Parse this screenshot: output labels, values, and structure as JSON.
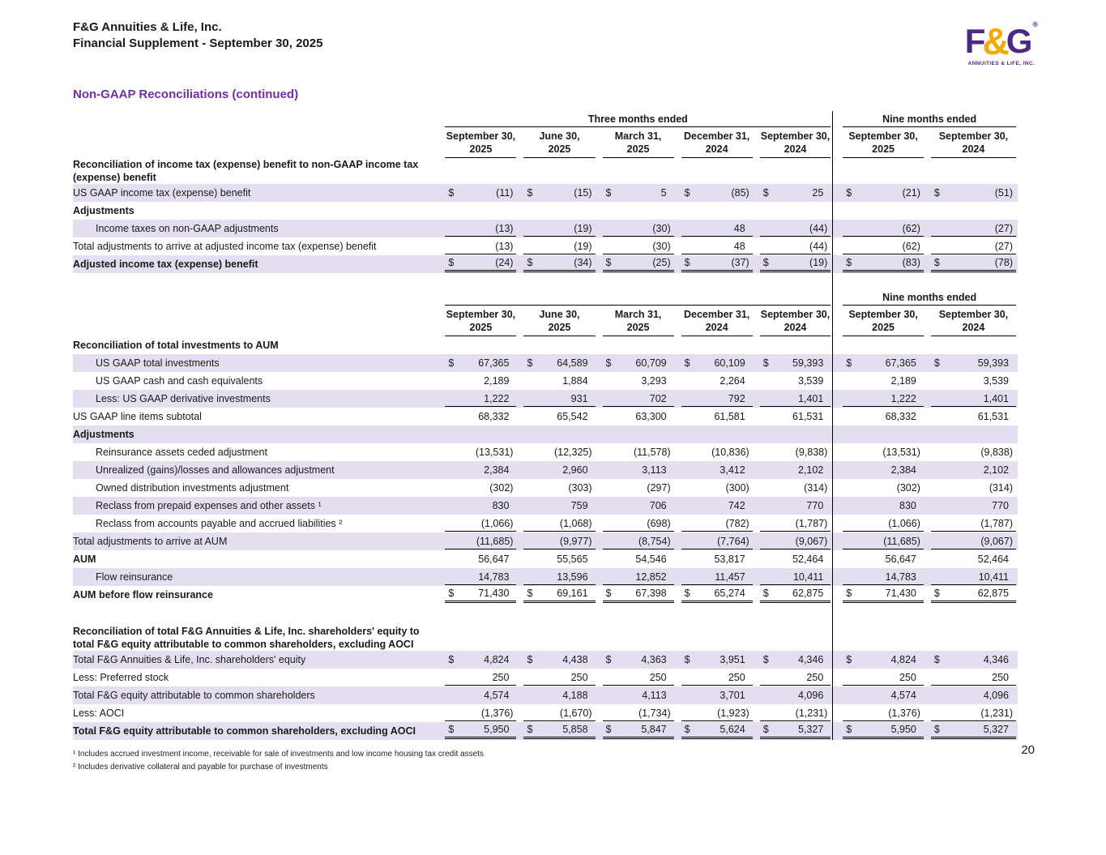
{
  "header": {
    "company": "F&G Annuities & Life, Inc.",
    "supplement": "Financial Supplement - September 30, 2025",
    "section_title": "Non-GAAP Reconciliations (continued)"
  },
  "logo": {
    "f": "F",
    "amp": "&",
    "g": "G",
    "reg": "®",
    "tagline": "ANNUITIES & LIFE, INC."
  },
  "colors": {
    "brand_purple": "#4f2683",
    "brand_gold": "#f2a900",
    "row_shade": "#e4dff0",
    "section_title": "#7030a0"
  },
  "table": {
    "group_headers": {
      "three_months": "Three months ended",
      "nine_months": "Nine months ended"
    },
    "columns": [
      {
        "line1": "September 30,",
        "line2": "2025"
      },
      {
        "line1": "June 30,",
        "line2": "2025"
      },
      {
        "line1": "March 31,",
        "line2": "2025"
      },
      {
        "line1": "December 31,",
        "line2": "2024"
      },
      {
        "line1": "September 30,",
        "line2": "2024"
      },
      {
        "line1": "September 30,",
        "line2": "2025"
      },
      {
        "line1": "September 30,",
        "line2": "2024"
      }
    ],
    "sections": [
      {
        "header": "full",
        "rows": [
          {
            "label": "Reconciliation of income tax (expense) benefit to non-GAAP income tax (expense) benefit",
            "bold": true
          },
          {
            "label": "US GAAP income tax (expense) benefit",
            "dollar": true,
            "shaded": true,
            "values": [
              "(11)",
              "(15)",
              "5",
              "(85)",
              "25",
              "(21)",
              "(51)"
            ]
          },
          {
            "label": "Adjustments",
            "bold": true
          },
          {
            "label": "Income taxes on non-GAAP adjustments",
            "indent": true,
            "shaded": true,
            "rule": "single",
            "values": [
              "(13)",
              "(19)",
              "(30)",
              "48",
              "(44)",
              "(62)",
              "(27)"
            ]
          },
          {
            "label": "Total adjustments to arrive at adjusted income tax (expense) benefit",
            "rule": "single",
            "values": [
              "(13)",
              "(19)",
              "(30)",
              "48",
              "(44)",
              "(62)",
              "(27)"
            ]
          },
          {
            "label": "Adjusted income tax (expense) benefit",
            "bold": true,
            "dollar": true,
            "shaded": true,
            "rule": "double",
            "values": [
              "(24)",
              "(34)",
              "(25)",
              "(37)",
              "(19)",
              "(83)",
              "(78)"
            ]
          }
        ]
      },
      {
        "header": "partial",
        "rows": [
          {
            "label": "Reconciliation of total investments to AUM",
            "bold": true
          },
          {
            "label": "US GAAP total investments",
            "indent": true,
            "dollar": true,
            "shaded": true,
            "values": [
              "67,365",
              "64,589",
              "60,709",
              "60,109",
              "59,393",
              "67,365",
              "59,393"
            ]
          },
          {
            "label": "US GAAP cash and cash equivalents",
            "indent": true,
            "values": [
              "2,189",
              "1,884",
              "3,293",
              "2,264",
              "3,539",
              "2,189",
              "3,539"
            ]
          },
          {
            "label": "Less: US GAAP derivative investments",
            "indent": true,
            "shaded": true,
            "rule": "single",
            "values": [
              "1,222",
              "931",
              "702",
              "792",
              "1,401",
              "1,222",
              "1,401"
            ]
          },
          {
            "label": "US GAAP line items subtotal",
            "values": [
              "68,332",
              "65,542",
              "63,300",
              "61,581",
              "61,531",
              "68,332",
              "61,531"
            ]
          },
          {
            "label": "Adjustments",
            "bold": true,
            "shaded": true
          },
          {
            "label": "Reinsurance assets ceded adjustment",
            "indent": true,
            "values": [
              "(13,531)",
              "(12,325)",
              "(11,578)",
              "(10,836)",
              "(9,838)",
              "(13,531)",
              "(9,838)"
            ]
          },
          {
            "label": "Unrealized (gains)/losses and allowances adjustment",
            "indent": true,
            "shaded": true,
            "values": [
              "2,384",
              "2,960",
              "3,113",
              "3,412",
              "2,102",
              "2,384",
              "2,102"
            ]
          },
          {
            "label": "Owned distribution investments adjustment",
            "indent": true,
            "values": [
              "(302)",
              "(303)",
              "(297)",
              "(300)",
              "(314)",
              "(302)",
              "(314)"
            ]
          },
          {
            "label": "Reclass from prepaid expenses and other assets ¹",
            "indent": true,
            "shaded": true,
            "values": [
              "830",
              "759",
              "706",
              "742",
              "770",
              "830",
              "770"
            ]
          },
          {
            "label": "Reclass from accounts payable and accrued liabilities ²",
            "indent": true,
            "rule": "single",
            "values": [
              "(1,066)",
              "(1,068)",
              "(698)",
              "(782)",
              "(1,787)",
              "(1,066)",
              "(1,787)"
            ]
          },
          {
            "label": "Total adjustments to arrive at AUM",
            "shaded": true,
            "rule": "single",
            "values": [
              "(11,685)",
              "(9,977)",
              "(8,754)",
              "(7,764)",
              "(9,067)",
              "(11,685)",
              "(9,067)"
            ]
          },
          {
            "label": "AUM",
            "bold": true,
            "values": [
              "56,647",
              "55,565",
              "54,546",
              "53,817",
              "52,464",
              "56,647",
              "52,464"
            ]
          },
          {
            "label": "Flow reinsurance",
            "indent": true,
            "shaded": true,
            "rule": "single",
            "values": [
              "14,783",
              "13,596",
              "12,852",
              "11,457",
              "10,411",
              "14,783",
              "10,411"
            ]
          },
          {
            "label": "AUM before flow reinsurance",
            "bold": true,
            "dollar": true,
            "rule": "double",
            "values": [
              "71,430",
              "69,161",
              "67,398",
              "65,274",
              "62,875",
              "71,430",
              "62,875"
            ]
          }
        ]
      },
      {
        "header": "none",
        "rows": [
          {
            "label": "Reconciliation of total F&G Annuities & Life, Inc. shareholders' equity to total F&G equity attributable to common shareholders, excluding AOCI",
            "bold": true
          },
          {
            "label": "Total F&G Annuities & Life, Inc. shareholders' equity",
            "dollar": true,
            "shaded": true,
            "values": [
              "4,824",
              "4,438",
              "4,363",
              "3,951",
              "4,346",
              "4,824",
              "4,346"
            ]
          },
          {
            "label": "Less: Preferred stock",
            "rule": "single",
            "values": [
              "250",
              "250",
              "250",
              "250",
              "250",
              "250",
              "250"
            ]
          },
          {
            "label": "Total F&G equity attributable to common shareholders",
            "shaded": true,
            "values": [
              "4,574",
              "4,188",
              "4,113",
              "3,701",
              "4,096",
              "4,574",
              "4,096"
            ]
          },
          {
            "label": "Less: AOCI",
            "rule": "single",
            "values": [
              "(1,376)",
              "(1,670)",
              "(1,734)",
              "(1,923)",
              "(1,231)",
              "(1,376)",
              "(1,231)"
            ]
          },
          {
            "label": "Total F&G equity attributable to common shareholders, excluding AOCI",
            "bold": true,
            "dollar": true,
            "shaded": true,
            "rule": "double",
            "values": [
              "5,950",
              "5,858",
              "5,847",
              "5,624",
              "5,327",
              "5,950",
              "5,327"
            ]
          }
        ]
      }
    ]
  },
  "footnotes": [
    "¹ Includes accrued investment income, receivable for sale of investments and low income housing tax credit assets",
    "² Includes derivative collateral and payable for purchase of investments"
  ],
  "page_number": "20"
}
